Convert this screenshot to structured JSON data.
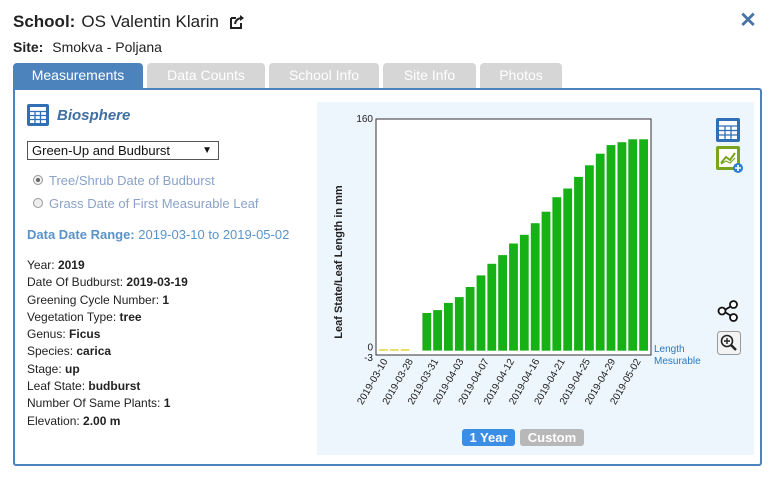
{
  "header": {
    "school_label": "School:",
    "school_name": "OS Valentin Klarin",
    "site_label": "Site:",
    "site_name": "Smokva - Poljana",
    "close_icon": "close-icon"
  },
  "tabs": [
    {
      "label": "Measurements",
      "active": true
    },
    {
      "label": "Data Counts",
      "active": false
    },
    {
      "label": "School Info",
      "active": false
    },
    {
      "label": "Site Info",
      "active": false
    },
    {
      "label": "Photos",
      "active": false
    }
  ],
  "left": {
    "title": "Biosphere",
    "dropdown_value": "Green-Up and Budburst",
    "radio_1": "Tree/Shrub Date of Budburst",
    "radio_2": "Grass Date of First Measurable Leaf",
    "range_label": "Data Date Range:",
    "range_value": "2019-03-10 to 2019-05-02",
    "details": [
      {
        "label": "Year:",
        "value": "2019"
      },
      {
        "label": "Date Of Budburst:",
        "value": "2019-03-19"
      },
      {
        "label": "Greening Cycle Number:",
        "value": "1"
      },
      {
        "label": "Vegetation Type:",
        "value": "tree"
      },
      {
        "label": "Genus:",
        "value": "Ficus"
      },
      {
        "label": "Species:",
        "value": "carica"
      },
      {
        "label": "Stage:",
        "value": "up"
      },
      {
        "label": "Leaf State:",
        "value": "budburst"
      },
      {
        "label": "Number Of Same Plants:",
        "value": "1"
      },
      {
        "label": "Elevation:",
        "value": "2.00 m"
      }
    ]
  },
  "chart_buttons": {
    "one_year": "1 Year",
    "custom": "Custom"
  },
  "colors": {
    "accent": "#4d83bd",
    "bar": "#15b115",
    "bar_small": "#e0d43a"
  },
  "chart_data": {
    "type": "bar",
    "ylabel": "Leaf State/Leaf Length in mm",
    "ylim": [
      -3,
      160
    ],
    "ytick_labels": [
      "160",
      "0",
      "-3"
    ],
    "legend_lines": [
      "Length",
      "Mesurable"
    ],
    "x_labels": [
      "2019-03-10",
      "2019-03-28",
      "2019-03-31",
      "2019-04-03",
      "2019-04-07",
      "2019-04-12",
      "2019-04-16",
      "2019-04-21",
      "2019-04-25",
      "2019-04-29",
      "2019-05-02"
    ],
    "values": [
      1,
      1,
      1,
      0,
      26,
      28,
      33,
      37,
      44,
      52,
      60,
      66,
      74,
      80,
      88,
      96,
      106,
      112,
      120,
      128,
      136,
      142,
      144,
      146,
      146
    ],
    "small_bar_count": 3
  }
}
